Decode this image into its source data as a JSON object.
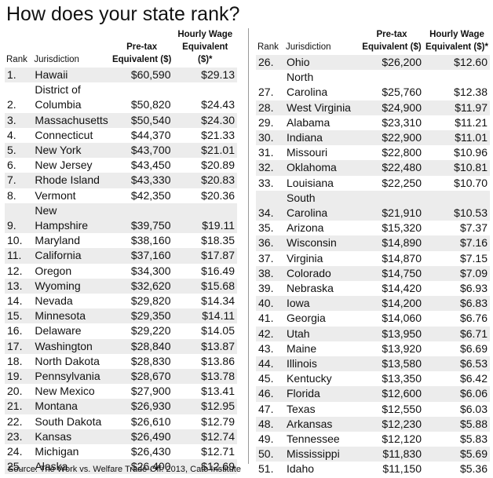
{
  "title": "How does your state rank?",
  "source": "Source: The Work vs. Welfare Trade-Off: 2013, Cato Institute",
  "tables": [
    {
      "headers": [
        "Rank",
        "Jurisdiction",
        "Pre-tax\nEquivalent ($)",
        "Hourly Wage\nEquivalent ($)*"
      ],
      "rows": [
        [
          "1.",
          "Hawaii",
          "$60,590",
          "$29.13"
        ],
        [
          "2.",
          "District of\nColumbia",
          "$50,820",
          "$24.43"
        ],
        [
          "3.",
          "Massachusetts",
          "$50,540",
          "$24.30"
        ],
        [
          "4.",
          "Connecticut",
          "$44,370",
          "$21.33"
        ],
        [
          "5.",
          "New York",
          "$43,700",
          "$21.01"
        ],
        [
          "6.",
          "New Jersey",
          "$43,450",
          "$20.89"
        ],
        [
          "7.",
          "Rhode Island",
          "$43,330",
          "$20.83"
        ],
        [
          "8.",
          "Vermont",
          "$42,350",
          "$20.36"
        ],
        [
          "9.",
          "New\nHampshire",
          "$39,750",
          "$19.11"
        ],
        [
          "10.",
          "Maryland",
          "$38,160",
          "$18.35"
        ],
        [
          "11.",
          "California",
          "$37,160",
          "$17.87"
        ],
        [
          "12.",
          "Oregon",
          "$34,300",
          "$16.49"
        ],
        [
          "13.",
          "Wyoming",
          "$32,620",
          "$15.68"
        ],
        [
          "14.",
          "Nevada",
          "$29,820",
          "$14.34"
        ],
        [
          "15.",
          "Minnesota",
          "$29,350",
          "$14.11"
        ],
        [
          "16.",
          "Delaware",
          "$29,220",
          "$14.05"
        ],
        [
          "17.",
          "Washington",
          "$28,840",
          "$13.87"
        ],
        [
          "18.",
          "North Dakota",
          "$28,830",
          "$13.86"
        ],
        [
          "19.",
          "Pennsylvania",
          "$28,670",
          "$13.78"
        ],
        [
          "20.",
          "New Mexico",
          "$27,900",
          "$13.41"
        ],
        [
          "21.",
          "Montana",
          "$26,930",
          "$12.95"
        ],
        [
          "22.",
          "South Dakota",
          "$26,610",
          "$12.79"
        ],
        [
          "23.",
          "Kansas",
          "$26,490",
          "$12.74"
        ],
        [
          "24.",
          "Michigan",
          "$26,430",
          "$12.71"
        ],
        [
          "25.",
          "Alaska",
          "$26,400",
          "$12.69"
        ]
      ]
    },
    {
      "headers": [
        "Rank",
        "Jurisdiction",
        "Pre-tax\nEquivalent ($)",
        "Hourly Wage\nEquivalent ($)*"
      ],
      "rows": [
        [
          "26.",
          "Ohio",
          "$26,200",
          "$12.60"
        ],
        [
          "27.",
          "North Carolina",
          "$25,760",
          "$12.38"
        ],
        [
          "28.",
          "West Virginia",
          "$24,900",
          "$11.97"
        ],
        [
          "29.",
          "Alabama",
          "$23,310",
          "$11.21"
        ],
        [
          "30.",
          "Indiana",
          "$22,900",
          "$11.01"
        ],
        [
          "31.",
          "Missouri",
          "$22,800",
          "$10.96"
        ],
        [
          "32.",
          "Oklahoma",
          "$22,480",
          "$10.81"
        ],
        [
          "33.",
          "Louisiana",
          "$22,250",
          "$10.70"
        ],
        [
          "34.",
          "South Carolina",
          "$21,910",
          "$10.53"
        ],
        [
          "35.",
          "Arizona",
          "$15,320",
          "$7.37"
        ],
        [
          "36.",
          "Wisconsin",
          "$14,890",
          "$7.16"
        ],
        [
          "37.",
          "Virginia",
          "$14,870",
          "$7.15"
        ],
        [
          "38.",
          "Colorado",
          "$14,750",
          "$7.09"
        ],
        [
          "39.",
          "Nebraska",
          "$14,420",
          "$6.93"
        ],
        [
          "40.",
          "Iowa",
          "$14,200",
          "$6.83"
        ],
        [
          "41.",
          "Georgia",
          "$14,060",
          "$6.76"
        ],
        [
          "42.",
          "Utah",
          "$13,950",
          "$6.71"
        ],
        [
          "43.",
          "Maine",
          "$13,920",
          "$6.69"
        ],
        [
          "44.",
          "Illinois",
          "$13,580",
          "$6.53"
        ],
        [
          "45.",
          "Kentucky",
          "$13,350",
          "$6.42"
        ],
        [
          "46.",
          "Florida",
          "$12,600",
          "$6.06"
        ],
        [
          "47.",
          "Texas",
          "$12,550",
          "$6.03"
        ],
        [
          "48.",
          "Arkansas",
          "$12,230",
          "$5.88"
        ],
        [
          "49.",
          "Tennessee",
          "$12,120",
          "$5.83"
        ],
        [
          "50.",
          "Mississippi",
          "$11,830",
          "$5.69"
        ],
        [
          "51.",
          "Idaho",
          "$11,150",
          "$5.36"
        ]
      ]
    }
  ]
}
